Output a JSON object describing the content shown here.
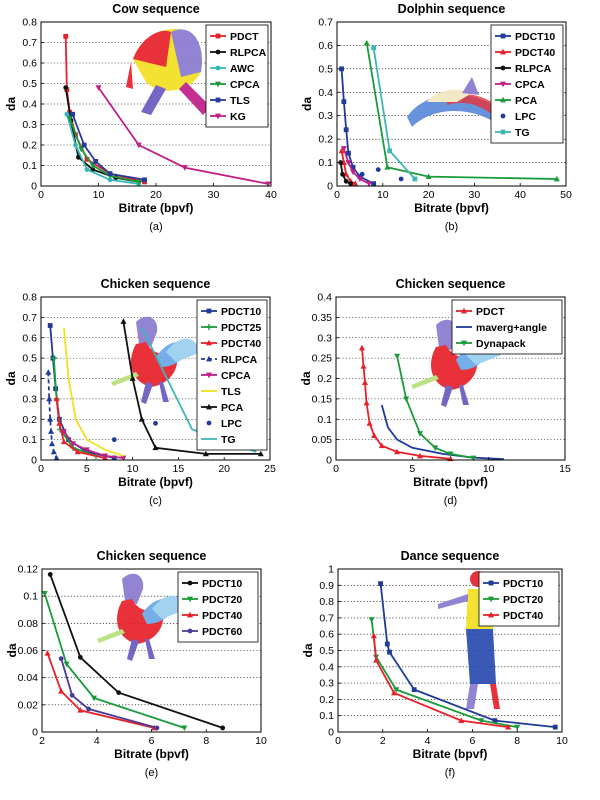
{
  "chart_data": [
    {
      "id": "a",
      "type": "line",
      "title": "Cow sequence",
      "xlabel": "Bitrate (bpvf)",
      "ylabel": "da",
      "caption": "(a)",
      "xlim": [
        0,
        40
      ],
      "ylim": [
        0,
        0.8
      ],
      "xticks": [
        0,
        10,
        20,
        30,
        40
      ],
      "yticks": [
        0,
        0.1,
        0.2,
        0.3,
        0.4,
        0.5,
        0.6,
        0.7,
        0.8
      ],
      "grid": "horizontal dotted",
      "legend_position": "top-right",
      "series": [
        {
          "name": "PDCT",
          "color": "#e8202a",
          "marker": "square",
          "points": [
            [
              4.3,
              0.73
            ],
            [
              4.5,
              0.47
            ],
            [
              5.0,
              0.36
            ],
            [
              6.0,
              0.25
            ],
            [
              8.0,
              0.13
            ],
            [
              12.0,
              0.06
            ],
            [
              18.0,
              0.02
            ]
          ]
        },
        {
          "name": "RLPCA",
          "color": "#111111",
          "marker": "dot",
          "points": [
            [
              4.3,
              0.48
            ],
            [
              5.2,
              0.32
            ],
            [
              6.5,
              0.14
            ],
            [
              9.0,
              0.08
            ],
            [
              13.0,
              0.04
            ],
            [
              17.0,
              0.02
            ]
          ]
        },
        {
          "name": "AWC",
          "color": "#35b8b8",
          "marker": "dot",
          "points": [
            [
              4.5,
              0.35
            ],
            [
              6.0,
              0.2
            ],
            [
              8.0,
              0.08
            ],
            [
              12.0,
              0.03
            ],
            [
              17.0,
              0.01
            ]
          ]
        },
        {
          "name": "CPCA",
          "color": "#1a9b3a",
          "marker": "triangle-down",
          "points": [
            [
              5.0,
              0.33
            ],
            [
              7.0,
              0.18
            ],
            [
              9.0,
              0.1
            ],
            [
              12.0,
              0.05
            ],
            [
              17.0,
              0.02
            ]
          ]
        },
        {
          "name": "TLS",
          "color": "#2a3a9a",
          "marker": "square",
          "points": [
            [
              5.5,
              0.35
            ],
            [
              7.5,
              0.2
            ],
            [
              9.5,
              0.12
            ],
            [
              12.0,
              0.06
            ],
            [
              18.0,
              0.03
            ]
          ]
        },
        {
          "name": "KG",
          "color": "#c01f88",
          "marker": "triangle-down",
          "points": [
            [
              10.0,
              0.48
            ],
            [
              17.0,
              0.2
            ],
            [
              25.0,
              0.09
            ],
            [
              39.5,
              0.01
            ]
          ]
        }
      ]
    },
    {
      "id": "b",
      "type": "line",
      "title": "Dolphin sequence",
      "xlabel": "Bitrate (bpvf)",
      "ylabel": "da",
      "caption": "(b)",
      "xlim": [
        0,
        50
      ],
      "ylim": [
        0,
        0.7
      ],
      "xticks": [
        0,
        10,
        20,
        30,
        40,
        50
      ],
      "yticks": [
        0,
        0.1,
        0.2,
        0.3,
        0.4,
        0.5,
        0.6,
        0.7
      ],
      "grid": "horizontal dotted",
      "legend_position": "top-right",
      "series": [
        {
          "name": "PDCT10",
          "color": "#1f3a9a",
          "marker": "square",
          "points": [
            [
              1.0,
              0.5
            ],
            [
              1.5,
              0.36
            ],
            [
              2.0,
              0.24
            ],
            [
              2.5,
              0.14
            ],
            [
              3.5,
              0.08
            ],
            [
              5.0,
              0.04
            ],
            [
              8.0,
              0.01
            ]
          ]
        },
        {
          "name": "PDCT40",
          "color": "#e8202a",
          "marker": "triangle-up",
          "points": [
            [
              1.0,
              0.15
            ],
            [
              1.5,
              0.1
            ],
            [
              2.0,
              0.05
            ],
            [
              3.0,
              0.02
            ],
            [
              4.0,
              0.01
            ]
          ]
        },
        {
          "name": "RLPCA",
          "color": "#111111",
          "marker": "dot",
          "points": [
            [
              0.8,
              0.1
            ],
            [
              1.2,
              0.05
            ],
            [
              2.0,
              0.02
            ],
            [
              3.0,
              0.01
            ]
          ]
        },
        {
          "name": "CPCA",
          "color": "#c01f88",
          "marker": "triangle-down",
          "points": [
            [
              1.5,
              0.16
            ],
            [
              2.5,
              0.1
            ],
            [
              3.5,
              0.06
            ],
            [
              5.0,
              0.03
            ],
            [
              7.0,
              0.01
            ]
          ]
        },
        {
          "name": "PCA",
          "color": "#1a9b3a",
          "marker": "triangle-up",
          "points": [
            [
              6.5,
              0.61
            ],
            [
              11.0,
              0.08
            ],
            [
              20.0,
              0.04
            ],
            [
              48.0,
              0.03
            ]
          ]
        },
        {
          "name": "LPC",
          "color": "#1f3a9a",
          "marker": "dot-only",
          "points": [
            [
              9.0,
              0.07
            ],
            [
              14.0,
              0.03
            ],
            [
              5.5,
              0.05
            ]
          ]
        },
        {
          "name": "TG",
          "color": "#3fb6b6",
          "marker": "square",
          "points": [
            [
              8.0,
              0.59
            ],
            [
              11.5,
              0.15
            ],
            [
              17.0,
              0.03
            ]
          ]
        }
      ]
    },
    {
      "id": "c",
      "type": "line",
      "title": "Chicken sequence",
      "xlabel": "Bitrate (bpvf)",
      "ylabel": "da",
      "caption": "(c)",
      "xlim": [
        0,
        25
      ],
      "ylim": [
        0,
        0.8
      ],
      "xticks": [
        0,
        5,
        10,
        15,
        20,
        25
      ],
      "yticks": [
        0,
        0.1,
        0.2,
        0.3,
        0.4,
        0.5,
        0.6,
        0.7,
        0.8
      ],
      "grid": "horizontal dotted",
      "legend_position": "top-right",
      "series": [
        {
          "name": "PDCT10",
          "color": "#1f3a9a",
          "marker": "square",
          "points": [
            [
              1.0,
              0.66
            ],
            [
              1.3,
              0.5
            ],
            [
              1.6,
              0.35
            ],
            [
              2.0,
              0.2
            ],
            [
              3.0,
              0.1
            ],
            [
              5.0,
              0.04
            ],
            [
              8.0,
              0.01
            ]
          ]
        },
        {
          "name": "PDCT25",
          "color": "#1a9b3a",
          "marker": "plus",
          "points": [
            [
              1.4,
              0.5
            ],
            [
              1.7,
              0.3
            ],
            [
              2.1,
              0.15
            ],
            [
              3.5,
              0.06
            ],
            [
              6.0,
              0.02
            ]
          ]
        },
        {
          "name": "PDCT40",
          "color": "#e8202a",
          "marker": "triangle-up",
          "points": [
            [
              1.7,
              0.3
            ],
            [
              2.0,
              0.18
            ],
            [
              2.5,
              0.09
            ],
            [
              4.0,
              0.04
            ],
            [
              7.0,
              0.01
            ]
          ]
        },
        {
          "name": "RLPCA",
          "color": "#1f3a9a",
          "marker": "triangle-up",
          "dashed": true,
          "points": [
            [
              0.8,
              0.43
            ],
            [
              0.9,
              0.3
            ],
            [
              1.0,
              0.2
            ],
            [
              1.1,
              0.14
            ],
            [
              1.2,
              0.08
            ],
            [
              1.4,
              0.04
            ],
            [
              1.7,
              0.01
            ]
          ]
        },
        {
          "name": "CPCA",
          "color": "#c01f88",
          "marker": "triangle-down",
          "points": [
            [
              2.5,
              0.14
            ],
            [
              3.5,
              0.08
            ],
            [
              5.0,
              0.05
            ],
            [
              7.0,
              0.02
            ],
            [
              9.0,
              0.01
            ]
          ]
        },
        {
          "name": "TLS",
          "color": "#f2e020",
          "marker": "none",
          "points": [
            [
              2.5,
              0.65
            ],
            [
              3.0,
              0.4
            ],
            [
              3.8,
              0.2
            ],
            [
              5.0,
              0.1
            ],
            [
              7.0,
              0.05
            ],
            [
              9.0,
              0.02
            ]
          ]
        },
        {
          "name": "PCA",
          "color": "#111111",
          "marker": "triangle-up",
          "points": [
            [
              9.0,
              0.68
            ],
            [
              10.0,
              0.4
            ],
            [
              11.0,
              0.2
            ],
            [
              12.5,
              0.06
            ],
            [
              18.0,
              0.03
            ],
            [
              24.0,
              0.03
            ]
          ]
        },
        {
          "name": "LPC",
          "color": "#1f3a9a",
          "marker": "dot-only",
          "points": [
            [
              12.5,
              0.18
            ],
            [
              8.0,
              0.1
            ]
          ]
        },
        {
          "name": "TG",
          "color": "#3fb6b6",
          "marker": "none",
          "points": [
            [
              11.0,
              0.65
            ],
            [
              16.5,
              0.15
            ],
            [
              23.5,
              0.04
            ]
          ]
        }
      ]
    },
    {
      "id": "d",
      "type": "line",
      "title": "Chicken sequence",
      "xlabel": "Bitrate (bpvf)",
      "ylabel": "da",
      "caption": "(d)",
      "xlim": [
        0,
        15
      ],
      "ylim": [
        0,
        0.4
      ],
      "xticks": [
        0,
        5,
        10,
        15
      ],
      "yticks": [
        0,
        0.05,
        0.1,
        0.15,
        0.2,
        0.25,
        0.3,
        0.35,
        0.4
      ],
      "grid": "horizontal dotted",
      "legend_position": "top-right",
      "series": [
        {
          "name": "PDCT",
          "color": "#e8202a",
          "marker": "triangle-up",
          "points": [
            [
              1.7,
              0.275
            ],
            [
              1.8,
              0.23
            ],
            [
              1.9,
              0.19
            ],
            [
              2.0,
              0.14
            ],
            [
              2.2,
              0.09
            ],
            [
              2.5,
              0.06
            ],
            [
              3.0,
              0.035
            ],
            [
              4.0,
              0.02
            ],
            [
              5.5,
              0.01
            ],
            [
              7.5,
              0.003
            ]
          ]
        },
        {
          "name": "maverg+angle",
          "color": "#1f3a9a",
          "marker": "none",
          "points": [
            [
              3.0,
              0.135
            ],
            [
              3.4,
              0.08
            ],
            [
              4.0,
              0.05
            ],
            [
              5.0,
              0.03
            ],
            [
              7.0,
              0.015
            ],
            [
              9.0,
              0.006
            ],
            [
              11.0,
              0.002
            ]
          ]
        },
        {
          "name": "Dynapack",
          "color": "#1a9b3a",
          "marker": "triangle-down",
          "points": [
            [
              4.0,
              0.255
            ],
            [
              4.6,
              0.15
            ],
            [
              5.5,
              0.065
            ],
            [
              6.5,
              0.03
            ],
            [
              7.5,
              0.015
            ],
            [
              9.0,
              0.005
            ]
          ]
        }
      ]
    },
    {
      "id": "e",
      "type": "line",
      "title": "Chicken sequence",
      "xlabel": "Bitrate (bpvf)",
      "ylabel": "da",
      "caption": "(e)",
      "xlim": [
        2,
        10
      ],
      "ylim": [
        0,
        0.12
      ],
      "xticks": [
        2,
        4,
        6,
        8,
        10
      ],
      "yticks": [
        0,
        0.02,
        0.04,
        0.06,
        0.08,
        0.1,
        0.12
      ],
      "grid": "horizontal dotted",
      "legend_position": "top-right",
      "series": [
        {
          "name": "PDCT10",
          "color": "#111111",
          "marker": "dot",
          "points": [
            [
              2.3,
              0.116
            ],
            [
              3.4,
              0.055
            ],
            [
              4.8,
              0.029
            ],
            [
              8.6,
              0.003
            ]
          ]
        },
        {
          "name": "PDCT20",
          "color": "#1a9b3a",
          "marker": "triangle-down",
          "points": [
            [
              2.1,
              0.102
            ],
            [
              2.9,
              0.05
            ],
            [
              3.9,
              0.025
            ],
            [
              7.2,
              0.003
            ]
          ]
        },
        {
          "name": "PDCT40",
          "color": "#e8202a",
          "marker": "triangle-up",
          "points": [
            [
              2.2,
              0.058
            ],
            [
              2.7,
              0.03
            ],
            [
              3.4,
              0.016
            ],
            [
              6.1,
              0.003
            ]
          ]
        },
        {
          "name": "PDCT60",
          "color": "#4a3a9a",
          "marker": "dot",
          "points": [
            [
              2.7,
              0.054
            ],
            [
              3.1,
              0.027
            ],
            [
              3.7,
              0.017
            ],
            [
              6.2,
              0.003
            ]
          ]
        }
      ]
    },
    {
      "id": "f",
      "type": "line",
      "title": "Dance sequence",
      "xlabel": "Bitrate (bpvf)",
      "ylabel": "da",
      "caption": "(f)",
      "xlim": [
        0,
        10
      ],
      "ylim": [
        0,
        1
      ],
      "xticks": [
        0,
        2,
        4,
        6,
        8,
        10
      ],
      "yticks": [
        0,
        0.1,
        0.2,
        0.3,
        0.4,
        0.5,
        0.6,
        0.7,
        0.8,
        0.9,
        1
      ],
      "grid": "horizontal dotted",
      "legend_position": "top-right",
      "series": [
        {
          "name": "PDCT10",
          "color": "#1f3a9a",
          "marker": "square",
          "points": [
            [
              1.9,
              0.91
            ],
            [
              2.2,
              0.54
            ],
            [
              2.3,
              0.49
            ],
            [
              3.4,
              0.26
            ],
            [
              7.0,
              0.07
            ],
            [
              9.7,
              0.03
            ]
          ]
        },
        {
          "name": "PDCT20",
          "color": "#1a9b3a",
          "marker": "triangle-down",
          "points": [
            [
              1.5,
              0.69
            ],
            [
              1.7,
              0.46
            ],
            [
              2.6,
              0.26
            ],
            [
              6.4,
              0.07
            ],
            [
              8.0,
              0.03
            ]
          ]
        },
        {
          "name": "PDCT40",
          "color": "#e8202a",
          "marker": "triangle-up",
          "points": [
            [
              1.6,
              0.59
            ],
            [
              1.7,
              0.44
            ],
            [
              2.5,
              0.24
            ],
            [
              5.5,
              0.07
            ],
            [
              7.6,
              0.03
            ]
          ]
        }
      ]
    }
  ]
}
